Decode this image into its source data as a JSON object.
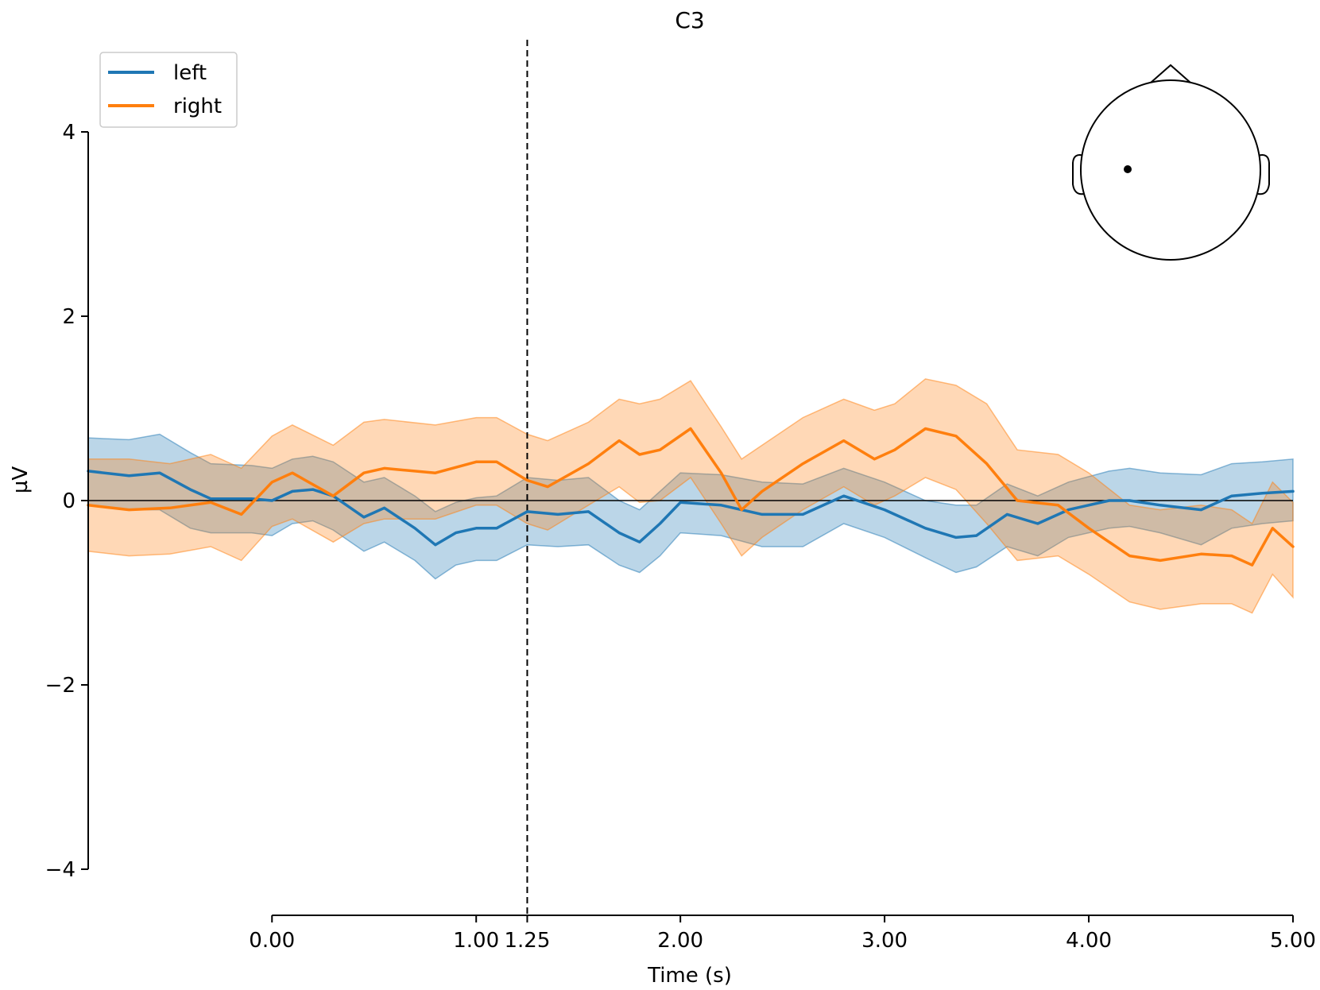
{
  "chart_data": {
    "type": "line",
    "title": "C3",
    "xlabel": "Time (s)",
    "ylabel": "µV",
    "xlim": [
      -0.9,
      5.0
    ],
    "ylim": [
      -4.5,
      5.0
    ],
    "x_ticks": [
      0.0,
      1.0,
      1.25,
      2.0,
      3.0,
      4.0,
      5.0
    ],
    "x_tick_labels": [
      "0.00",
      "1.00",
      "1.25",
      "2.00",
      "3.00",
      "4.00",
      "5.00"
    ],
    "y_ticks": [
      -4,
      -2,
      0,
      2,
      4
    ],
    "y_tick_labels": [
      "−4",
      "−2",
      "0",
      "2",
      "4"
    ],
    "vline_x": 1.25,
    "hline_y": 0,
    "legend_position": "top-left",
    "series": [
      {
        "name": "left",
        "color": "#1f77b4",
        "x": [
          -0.9,
          -0.7,
          -0.55,
          -0.4,
          -0.3,
          -0.1,
          0.0,
          0.1,
          0.2,
          0.3,
          0.45,
          0.55,
          0.7,
          0.8,
          0.9,
          1.0,
          1.1,
          1.25,
          1.4,
          1.55,
          1.7,
          1.8,
          1.9,
          2.0,
          2.2,
          2.4,
          2.6,
          2.8,
          3.0,
          3.2,
          3.35,
          3.45,
          3.6,
          3.75,
          3.9,
          4.1,
          4.2,
          4.35,
          4.55,
          4.7,
          4.85,
          5.0
        ],
        "mean": [
          0.32,
          0.27,
          0.3,
          0.12,
          0.02,
          0.02,
          0.0,
          0.1,
          0.12,
          0.05,
          -0.18,
          -0.08,
          -0.3,
          -0.48,
          -0.35,
          -0.3,
          -0.3,
          -0.12,
          -0.15,
          -0.12,
          -0.35,
          -0.45,
          -0.25,
          -0.02,
          -0.05,
          -0.15,
          -0.15,
          0.05,
          -0.1,
          -0.3,
          -0.4,
          -0.38,
          -0.15,
          -0.25,
          -0.1,
          0.0,
          0.0,
          -0.05,
          -0.1,
          0.05,
          0.08,
          0.1
        ],
        "upper": [
          0.68,
          0.66,
          0.72,
          0.52,
          0.4,
          0.38,
          0.35,
          0.45,
          0.48,
          0.42,
          0.2,
          0.25,
          0.05,
          -0.12,
          -0.02,
          0.03,
          0.05,
          0.25,
          0.22,
          0.25,
          0.0,
          -0.1,
          0.1,
          0.3,
          0.28,
          0.2,
          0.18,
          0.35,
          0.2,
          0.0,
          -0.05,
          -0.05,
          0.18,
          0.05,
          0.2,
          0.32,
          0.35,
          0.3,
          0.28,
          0.4,
          0.42,
          0.45
        ],
        "lower": [
          -0.05,
          -0.1,
          -0.1,
          -0.3,
          -0.35,
          -0.35,
          -0.38,
          -0.25,
          -0.22,
          -0.32,
          -0.55,
          -0.45,
          -0.65,
          -0.85,
          -0.7,
          -0.65,
          -0.65,
          -0.48,
          -0.5,
          -0.48,
          -0.7,
          -0.78,
          -0.6,
          -0.35,
          -0.38,
          -0.5,
          -0.5,
          -0.25,
          -0.4,
          -0.62,
          -0.78,
          -0.72,
          -0.5,
          -0.6,
          -0.4,
          -0.3,
          -0.28,
          -0.35,
          -0.48,
          -0.3,
          -0.25,
          -0.22
        ]
      },
      {
        "name": "right",
        "color": "#ff7f0e",
        "x": [
          -0.9,
          -0.7,
          -0.5,
          -0.3,
          -0.15,
          0.0,
          0.1,
          0.3,
          0.45,
          0.55,
          0.8,
          1.0,
          1.1,
          1.25,
          1.35,
          1.55,
          1.7,
          1.8,
          1.9,
          2.05,
          2.2,
          2.3,
          2.4,
          2.6,
          2.8,
          2.95,
          3.05,
          3.2,
          3.35,
          3.5,
          3.65,
          3.85,
          4.0,
          4.2,
          4.35,
          4.55,
          4.7,
          4.8,
          4.9,
          5.0
        ],
        "mean": [
          -0.05,
          -0.1,
          -0.08,
          -0.02,
          -0.15,
          0.2,
          0.3,
          0.05,
          0.3,
          0.35,
          0.3,
          0.42,
          0.42,
          0.22,
          0.15,
          0.4,
          0.65,
          0.5,
          0.55,
          0.78,
          0.3,
          -0.1,
          0.1,
          0.4,
          0.65,
          0.45,
          0.55,
          0.78,
          0.7,
          0.4,
          0.0,
          -0.05,
          -0.3,
          -0.6,
          -0.65,
          -0.58,
          -0.6,
          -0.7,
          -0.3,
          -0.5
        ],
        "upper": [
          0.45,
          0.45,
          0.4,
          0.5,
          0.35,
          0.7,
          0.82,
          0.6,
          0.85,
          0.88,
          0.82,
          0.9,
          0.9,
          0.72,
          0.65,
          0.85,
          1.1,
          1.05,
          1.1,
          1.3,
          0.8,
          0.45,
          0.6,
          0.9,
          1.1,
          0.98,
          1.05,
          1.32,
          1.25,
          1.05,
          0.55,
          0.5,
          0.3,
          -0.05,
          -0.1,
          -0.05,
          -0.1,
          -0.25,
          0.2,
          -0.02
        ],
        "lower": [
          -0.55,
          -0.6,
          -0.58,
          -0.5,
          -0.65,
          -0.28,
          -0.2,
          -0.45,
          -0.25,
          -0.2,
          -0.2,
          -0.05,
          -0.05,
          -0.25,
          -0.32,
          -0.05,
          0.15,
          -0.02,
          0.0,
          0.25,
          -0.25,
          -0.6,
          -0.4,
          -0.1,
          0.15,
          -0.05,
          0.05,
          0.25,
          0.12,
          -0.25,
          -0.65,
          -0.6,
          -0.8,
          -1.1,
          -1.18,
          -1.12,
          -1.12,
          -1.22,
          -0.8,
          -1.05
        ]
      }
    ]
  }
}
